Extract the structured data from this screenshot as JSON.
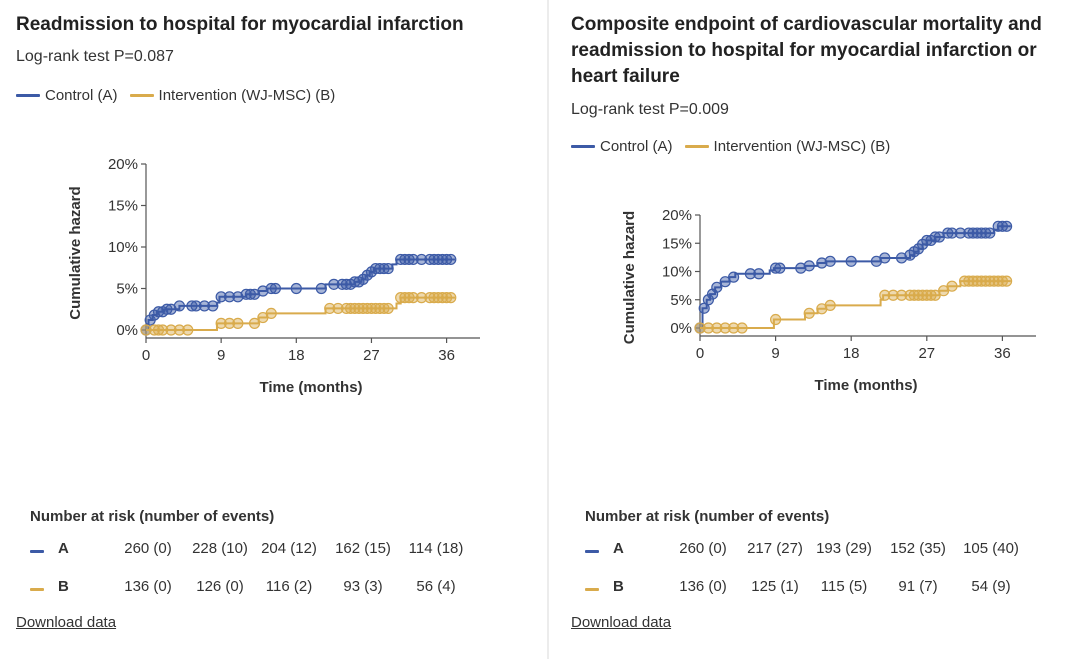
{
  "colors": {
    "control": "#3c5aa6",
    "intervention": "#d9ab4c",
    "axis": "#555555"
  },
  "download_label": "Download data",
  "risk_heading": "Number at risk (number of events)",
  "panels": [
    {
      "title": "Readmission to hospital for myocardial infarction",
      "subtitle": "Log-rank test P=0.087",
      "legend": {
        "control": "Control (A)",
        "intervention": "Intervention (WJ-MSC) (B)"
      },
      "risk": {
        "a_label": "A",
        "b_label": "B",
        "a": [
          "260 (0)",
          "228 (10)",
          "204 (12)",
          "162 (15)",
          "114 (18)"
        ],
        "b": [
          "136 (0)",
          "126 (0)",
          "116 (2)",
          "93 (3)",
          "56 (4)"
        ]
      }
    },
    {
      "title": "Composite endpoint of cardiovascular mortality and readmission to hospital for myocardial infarction or heart failure",
      "subtitle": "Log-rank test P=0.009",
      "legend": {
        "control": "Control (A)",
        "intervention": "Intervention (WJ-MSC) (B)"
      },
      "risk": {
        "a_label": "A",
        "b_label": "B",
        "a": [
          "260 (0)",
          "217 (27)",
          "193 (29)",
          "152 (35)",
          "105 (40)"
        ],
        "b": [
          "136 (0)",
          "125 (1)",
          "115 (5)",
          "91 (7)",
          "54 (9)"
        ]
      }
    }
  ],
  "chart_data": [
    {
      "type": "line",
      "title": "Readmission to hospital for myocardial infarction",
      "xlabel": "Time (months)",
      "ylabel": "Cumulative hazard",
      "xlim": [
        0,
        40
      ],
      "ylim": [
        0,
        20
      ],
      "xticks": [
        0,
        9,
        18,
        27,
        36
      ],
      "yticks": [
        0,
        5,
        10,
        15,
        20
      ],
      "xtick_labels": [
        "0",
        "9",
        "18",
        "27",
        "36"
      ],
      "ytick_labels": [
        "0%",
        "5%",
        "10%",
        "15%",
        "20%"
      ],
      "series": [
        {
          "name": "Control (A)",
          "color_key": "control",
          "steps": [
            [
              0,
              0
            ],
            [
              0.3,
              1.2
            ],
            [
              0.8,
              1.8
            ],
            [
              1.3,
              2.2
            ],
            [
              2.2,
              2.5
            ],
            [
              4,
              2.9
            ],
            [
              8.5,
              3.3
            ],
            [
              8.8,
              4.0
            ],
            [
              12,
              4.3
            ],
            [
              13.5,
              4.7
            ],
            [
              14.5,
              5.0
            ],
            [
              21.5,
              5.5
            ],
            [
              25,
              5.8
            ],
            [
              25.8,
              6.1
            ],
            [
              26.3,
              6.6
            ],
            [
              26.8,
              7.0
            ],
            [
              27.3,
              7.4
            ],
            [
              29.5,
              7.9
            ],
            [
              30,
              8.5
            ],
            [
              37,
              8.5
            ]
          ],
          "censored": [
            0,
            0.5,
            1,
            1.5,
            2,
            2.5,
            3,
            4,
            5.5,
            6,
            7,
            8,
            9,
            10,
            11,
            12,
            12.5,
            13,
            14,
            15,
            15.5,
            18,
            21,
            22.5,
            23.5,
            24,
            24.5,
            25,
            25.5,
            26,
            26.5,
            27,
            27.5,
            28,
            28.5,
            29,
            30.5,
            31,
            31.5,
            32,
            33,
            34,
            34.5,
            35,
            35.5,
            36,
            36.5
          ]
        },
        {
          "name": "Intervention (WJ-MSC) (B)",
          "color_key": "intervention",
          "steps": [
            [
              0,
              0
            ],
            [
              8.5,
              0.8
            ],
            [
              13.5,
              1.5
            ],
            [
              14.5,
              2.0
            ],
            [
              21.5,
              2.6
            ],
            [
              30,
              3.2
            ],
            [
              30.5,
              3.9
            ],
            [
              37,
              3.9
            ]
          ],
          "censored": [
            0,
            1,
            1.5,
            2,
            3,
            4,
            5,
            9,
            10,
            11,
            13,
            14,
            15,
            22,
            23,
            24,
            24.5,
            25,
            25.5,
            26,
            26.5,
            27,
            27.5,
            28,
            28.5,
            29,
            30.5,
            31,
            31.5,
            32,
            33,
            34,
            34.5,
            35,
            35.5,
            36,
            36.5
          ]
        }
      ]
    },
    {
      "type": "line",
      "title": "Composite endpoint of cardiovascular mortality and readmission to hospital for myocardial infarction or heart failure",
      "xlabel": "Time (months)",
      "ylabel": "Cumulative hazard",
      "xlim": [
        0,
        40
      ],
      "ylim": [
        0,
        20
      ],
      "xticks": [
        0,
        9,
        18,
        27,
        36
      ],
      "yticks": [
        0,
        5,
        10,
        15,
        20
      ],
      "xtick_labels": [
        "0",
        "9",
        "18",
        "27",
        "36"
      ],
      "ytick_labels": [
        "0%",
        "5%",
        "10%",
        "15%",
        "20%"
      ],
      "series": [
        {
          "name": "Control (A)",
          "color_key": "control",
          "steps": [
            [
              0,
              0
            ],
            [
              0.3,
              3.5
            ],
            [
              0.8,
              5.0
            ],
            [
              1.2,
              6.0
            ],
            [
              1.8,
              7.2
            ],
            [
              2.5,
              8.2
            ],
            [
              3.5,
              9.0
            ],
            [
              4.2,
              9.6
            ],
            [
              8.3,
              10.2
            ],
            [
              8.8,
              10.6
            ],
            [
              12.5,
              11.0
            ],
            [
              14,
              11.5
            ],
            [
              15,
              11.8
            ],
            [
              21.5,
              12.4
            ],
            [
              25,
              12.9
            ],
            [
              25.5,
              13.5
            ],
            [
              26,
              14.0
            ],
            [
              26.5,
              14.8
            ],
            [
              27,
              15.5
            ],
            [
              28,
              16.1
            ],
            [
              29,
              16.8
            ],
            [
              35,
              17.4
            ],
            [
              35.5,
              18.0
            ],
            [
              37,
              18.0
            ]
          ],
          "censored": [
            0,
            0.5,
            1,
            1.5,
            2,
            3,
            4,
            6,
            7,
            9,
            9.5,
            12,
            13,
            14.5,
            15.5,
            18,
            21,
            22,
            24,
            25,
            25.5,
            26,
            26.5,
            27,
            27.5,
            28,
            28.5,
            29.5,
            30,
            31,
            32,
            32.5,
            33,
            33.5,
            34,
            34.5,
            35.5,
            36,
            36.5
          ]
        },
        {
          "name": "Intervention (WJ-MSC) (B)",
          "color_key": "intervention",
          "steps": [
            [
              0,
              0
            ],
            [
              8.8,
              1.5
            ],
            [
              12.5,
              2.6
            ],
            [
              14,
              3.4
            ],
            [
              15,
              4.0
            ],
            [
              21.5,
              5.0
            ],
            [
              21.8,
              5.8
            ],
            [
              28.5,
              6.6
            ],
            [
              29.5,
              7.4
            ],
            [
              31,
              8.3
            ],
            [
              37,
              8.3
            ]
          ],
          "censored": [
            0,
            1,
            2,
            3,
            4,
            5,
            9,
            13,
            14.5,
            15.5,
            22,
            23,
            24,
            25,
            25.5,
            26,
            26.5,
            27,
            27.5,
            28,
            29,
            30,
            31.5,
            32,
            32.5,
            33,
            33.5,
            34,
            34.5,
            35,
            35.5,
            36,
            36.5
          ]
        }
      ]
    }
  ]
}
